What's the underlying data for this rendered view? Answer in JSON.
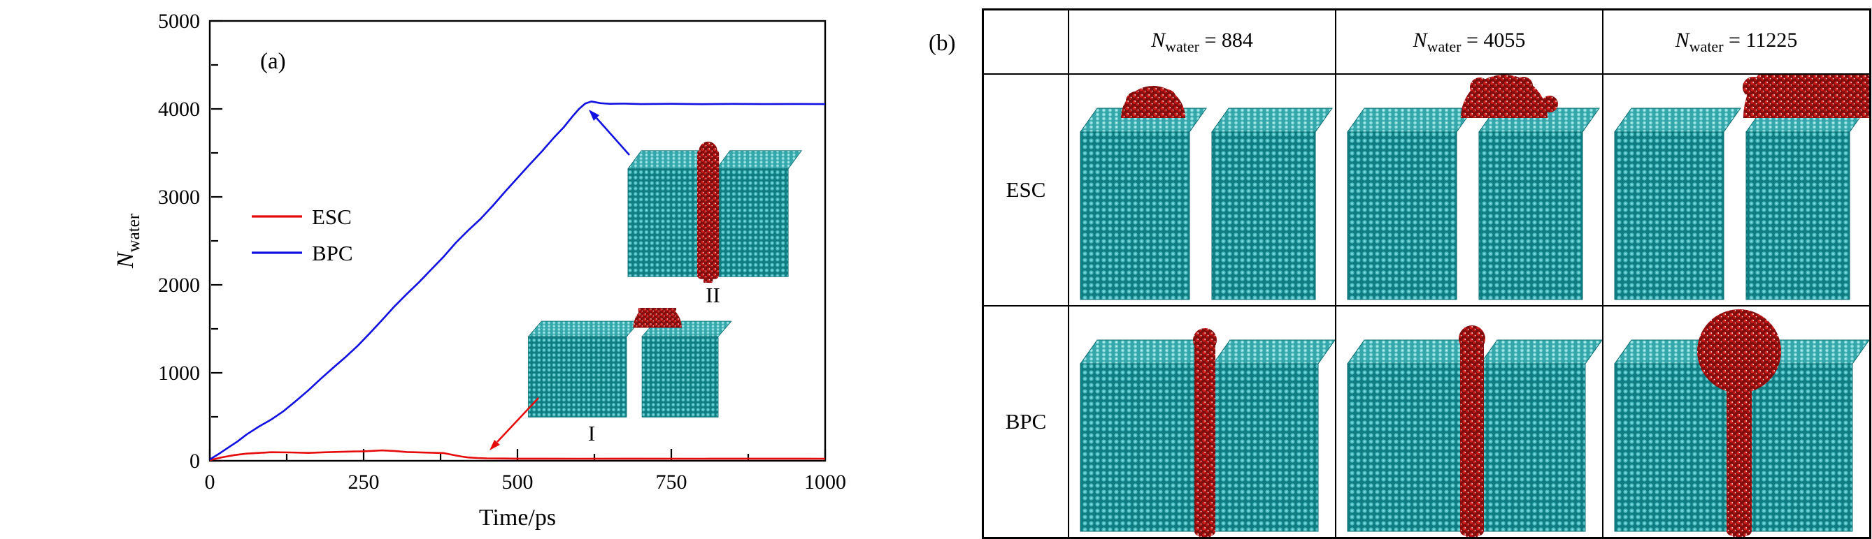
{
  "figure": {
    "panel_a": "(a)",
    "panel_b": "(b)"
  },
  "chart_data": {
    "type": "line",
    "title": "",
    "xlabel": "Time/ps",
    "ylabel": "N_water",
    "ylabel_parts": {
      "sym": "N",
      "sub": "water"
    },
    "xlim": [
      0,
      1000
    ],
    "ylim": [
      0,
      5000
    ],
    "xticks": [
      0,
      250,
      500,
      750,
      1000
    ],
    "yticks": [
      0,
      1000,
      2000,
      3000,
      4000,
      5000
    ],
    "grid": false,
    "legend_position": "left-middle",
    "series": [
      {
        "name": "ESC",
        "color": "#e60b0b",
        "x": [
          0,
          20,
          40,
          60,
          80,
          100,
          130,
          160,
          190,
          220,
          250,
          280,
          300,
          320,
          340,
          360,
          380,
          400,
          410,
          420,
          435,
          450,
          475,
          500,
          550,
          600,
          700,
          800,
          900,
          1000
        ],
        "y": [
          8,
          40,
          65,
          82,
          90,
          98,
          95,
          90,
          98,
          104,
          108,
          118,
          112,
          100,
          96,
          92,
          88,
          60,
          48,
          38,
          32,
          28,
          26,
          25,
          25,
          24,
          25,
          24,
          25,
          24
        ]
      },
      {
        "name": "BPC",
        "color": "#1010e0",
        "x": [
          0,
          15,
          30,
          45,
          60,
          80,
          100,
          120,
          140,
          160,
          180,
          200,
          220,
          240,
          260,
          280,
          300,
          320,
          340,
          360,
          380,
          400,
          420,
          440,
          460,
          480,
          500,
          520,
          540,
          560,
          575,
          590,
          600,
          610,
          620,
          635,
          650,
          675,
          700,
          750,
          800,
          850,
          900,
          950,
          1000
        ],
        "y": [
          15,
          80,
          150,
          220,
          300,
          390,
          470,
          565,
          680,
          800,
          930,
          1055,
          1175,
          1305,
          1450,
          1600,
          1755,
          1895,
          2030,
          2175,
          2320,
          2480,
          2620,
          2750,
          2900,
          3060,
          3215,
          3370,
          3520,
          3680,
          3790,
          3920,
          4000,
          4060,
          4085,
          4065,
          4058,
          4060,
          4055,
          4058,
          4054,
          4057,
          4055,
          4056,
          4055
        ]
      }
    ],
    "annotations": [
      {
        "label": "I",
        "series": "ESC"
      },
      {
        "label": "II",
        "series": "BPC"
      }
    ]
  },
  "table": {
    "header": [
      {
        "sym": "N",
        "sub": "water",
        "rest": " = 884"
      },
      {
        "sym": "N",
        "sub": "water",
        "rest": " = 4055"
      },
      {
        "sym": "N",
        "sub": "water",
        "rest": " = 11225"
      }
    ],
    "rows": [
      {
        "label": "ESC"
      },
      {
        "label": "BPC"
      }
    ]
  }
}
